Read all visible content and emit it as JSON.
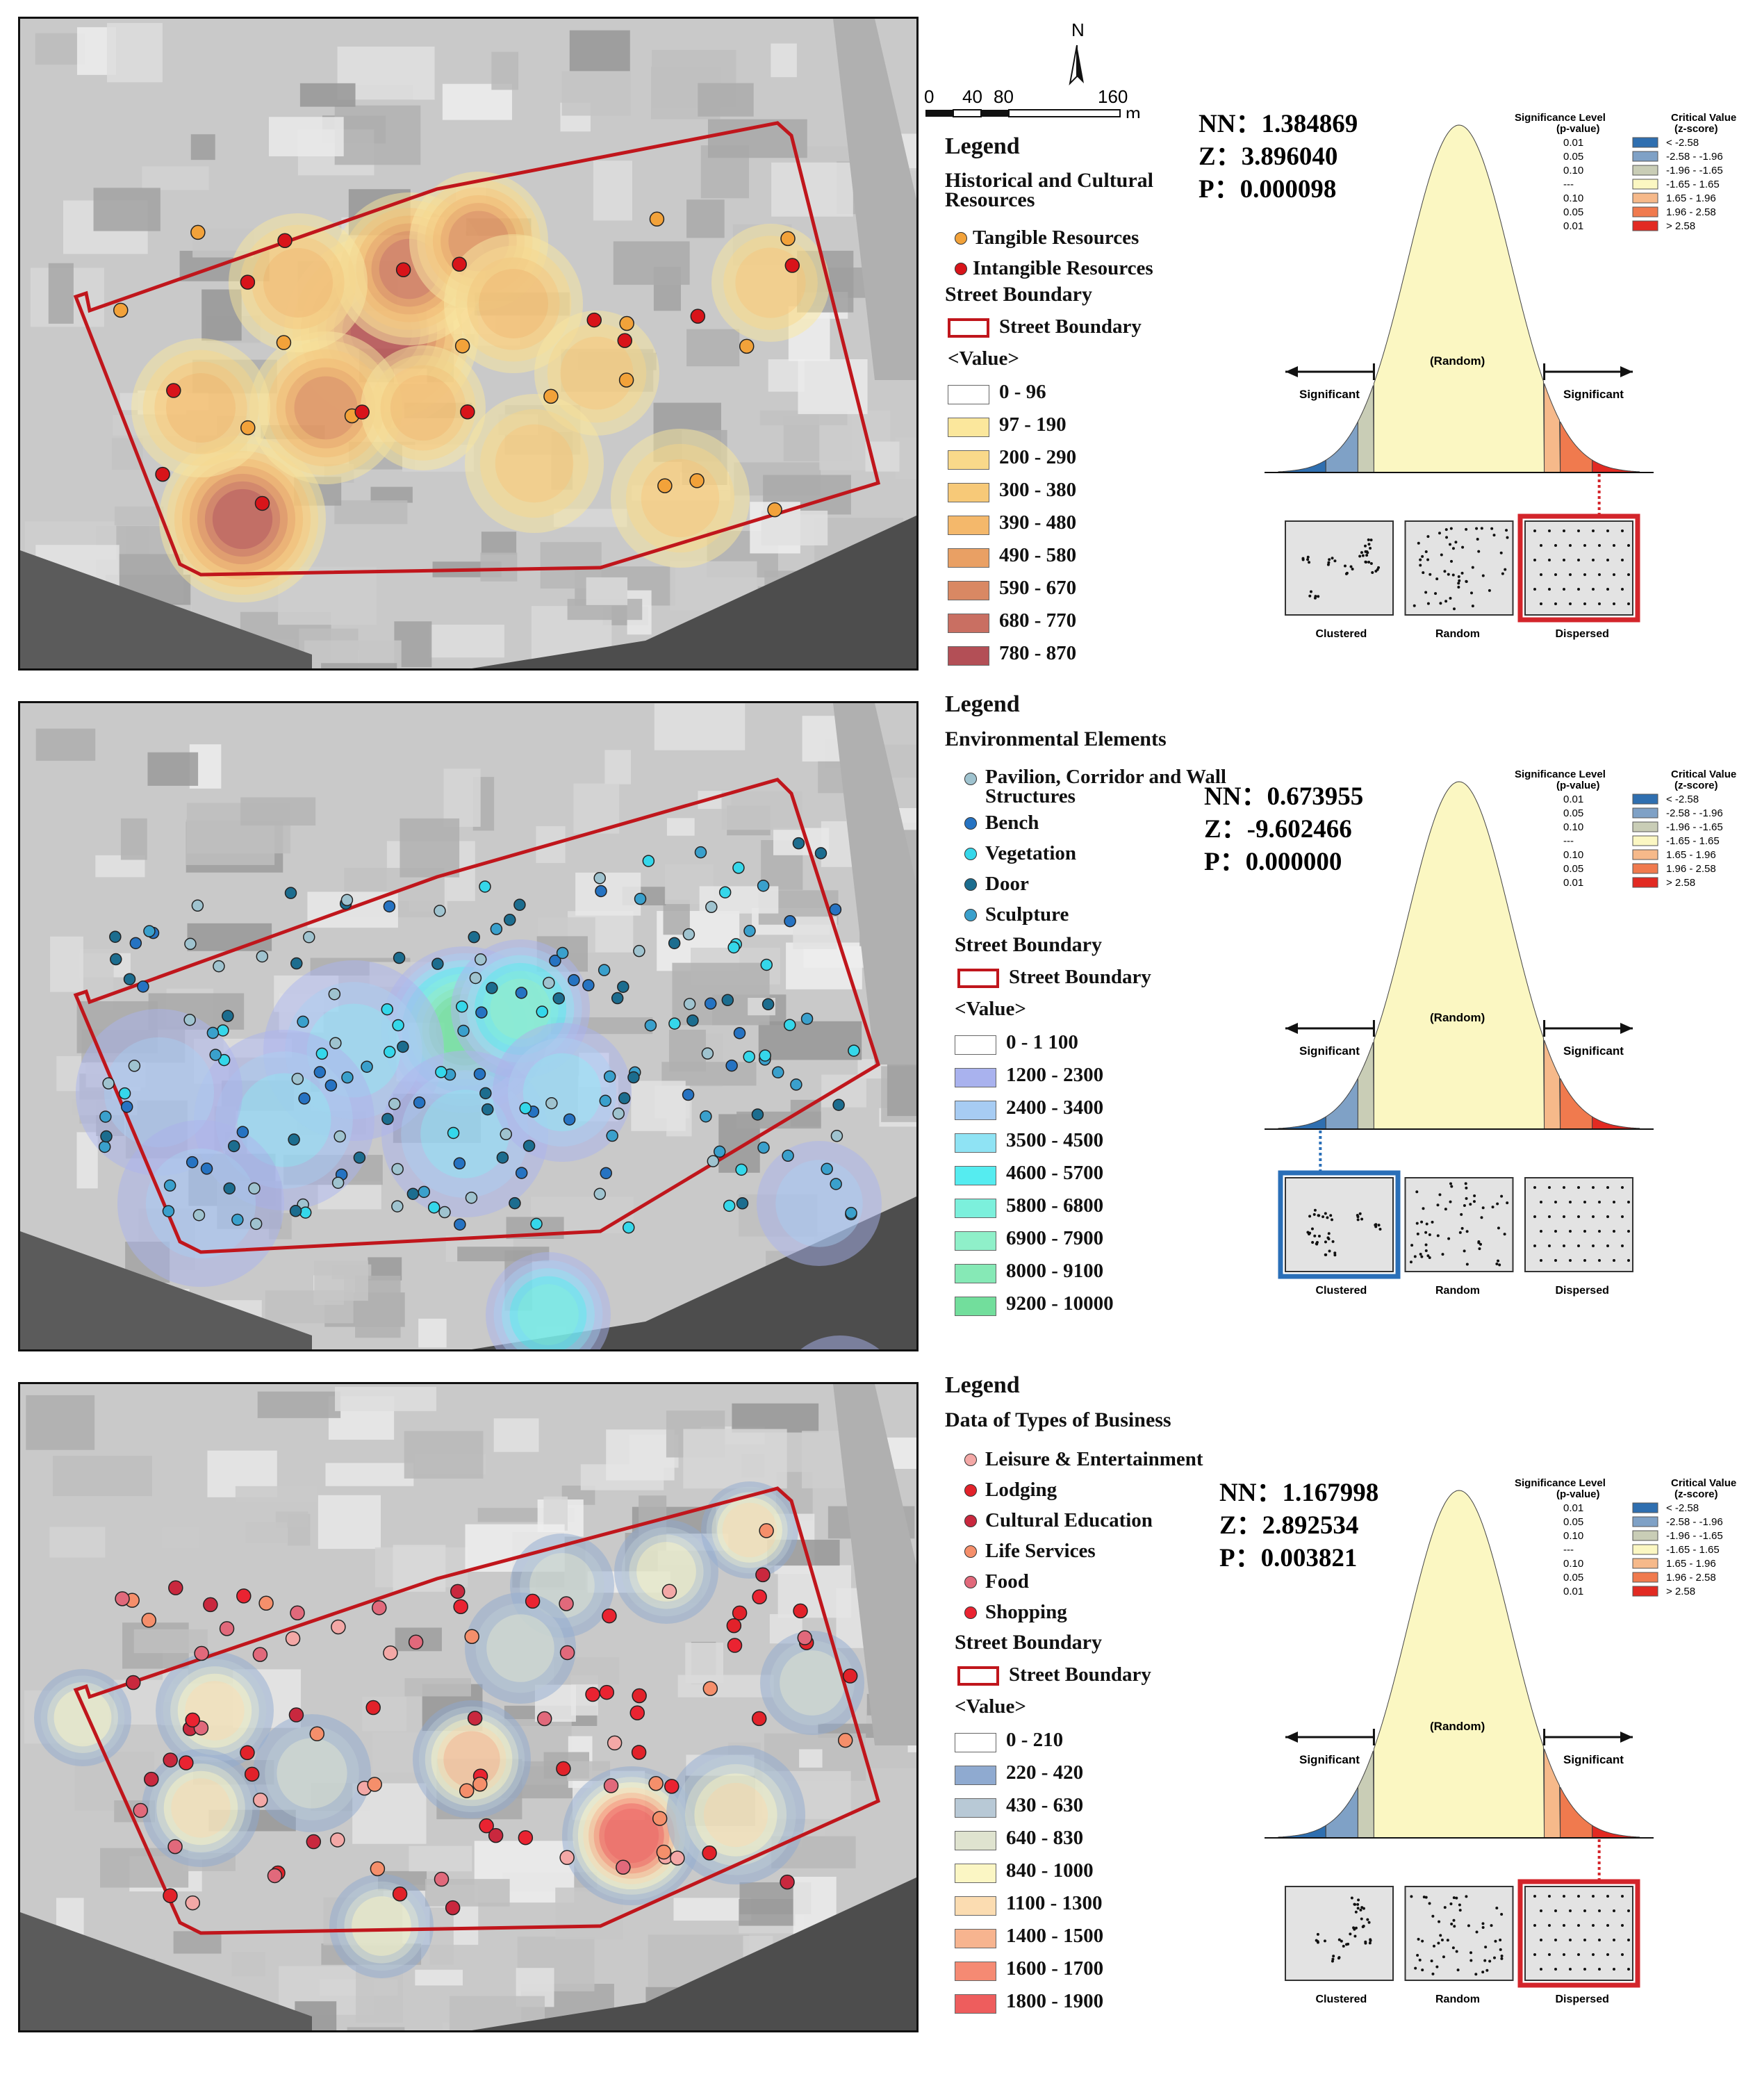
{
  "scale_bar": {
    "ticks": [
      "0",
      "40",
      "80",
      "160"
    ],
    "unit": "m",
    "north": "N"
  },
  "curve_labels": {
    "significant": "Significant",
    "random": "(Random)",
    "sig_level_title": "Significance Level",
    "sig_level_sub": "(p-value)",
    "crit_title": "Critical Value",
    "crit_sub": "(z-score)",
    "p_values": [
      "0.01",
      "0.05",
      "0.10",
      "---",
      "0.10",
      "0.05",
      "0.01"
    ],
    "z_ranges": [
      "< -2.58",
      "-2.58 - -1.96",
      "-1.96 - -1.65",
      "-1.65 - 1.65",
      "1.65 - 1.96",
      "1.96 - 2.58",
      "> 2.58"
    ],
    "z_colors": [
      "#2f6fb0",
      "#7fa1c6",
      "#c9cdb6",
      "#fbf7c2",
      "#f6b98a",
      "#f07a4e",
      "#e22a22"
    ],
    "patterns": [
      "Clustered",
      "Random",
      "Dispersed"
    ]
  },
  "panels": [
    {
      "legend_title": "Legend",
      "category_title": "Historical and Cultural Resources",
      "points": [
        {
          "label": "Tangible Resources",
          "color": "#f2a23a"
        },
        {
          "label": "Intangible Resources",
          "color": "#d8141a"
        }
      ],
      "boundary_heading": "Street Boundary",
      "boundary_label": "Street Boundary",
      "value_heading": "<Value>",
      "classes": [
        {
          "label": "0 - 96",
          "color": "#ffffff"
        },
        {
          "label": "97 - 190",
          "color": "#fbe79c"
        },
        {
          "label": "200 - 290",
          "color": "#f9d98a"
        },
        {
          "label": "300 - 380",
          "color": "#f7c978"
        },
        {
          "label": "390 - 480",
          "color": "#f4b86b"
        },
        {
          "label": "490 - 580",
          "color": "#e9a064"
        },
        {
          "label": "590 - 670",
          "color": "#d98863"
        },
        {
          "label": "680 - 770",
          "color": "#c96f62"
        },
        {
          "label": "780 - 870",
          "color": "#b34f56"
        }
      ],
      "stats": {
        "nn": "NN：1.384869",
        "z": "Z：3.896040",
        "p": "P：0.000098"
      },
      "pattern": "dispersed"
    },
    {
      "legend_title": "Legend",
      "category_title": "Environmental Elements",
      "points": [
        {
          "label": "Pavilion, Corridor and Wall Structures",
          "color": "#9fc3cf"
        },
        {
          "label": "Bench",
          "color": "#2673c2"
        },
        {
          "label": "Vegetation",
          "color": "#35d7ea"
        },
        {
          "label": "Door",
          "color": "#1c6d8f"
        },
        {
          "label": "Sculpture",
          "color": "#3aa0cc"
        }
      ],
      "boundary_heading": "Street Boundary",
      "boundary_label": "Street Boundary",
      "value_heading": "<Value>",
      "classes": [
        {
          "label": "0 - 1 100",
          "color": "#ffffff"
        },
        {
          "label": "1200 - 2300",
          "color": "#a9b2ee"
        },
        {
          "label": "2400 - 3400",
          "color": "#a7ccf3"
        },
        {
          "label": "3500 - 4500",
          "color": "#8fe3f4"
        },
        {
          "label": "4600 - 5700",
          "color": "#55ecf0"
        },
        {
          "label": "5800 - 6800",
          "color": "#7cf0dc"
        },
        {
          "label": "6900 - 7900",
          "color": "#8ff0c9"
        },
        {
          "label": "8000 - 9100",
          "color": "#86e9b6"
        },
        {
          "label": "9200 - 10000",
          "color": "#72de9c"
        }
      ],
      "stats": {
        "nn": "NN：0.673955",
        "z": "Z：-9.602466",
        "p": "P：0.000000"
      },
      "pattern": "clustered"
    },
    {
      "legend_title": "Legend",
      "category_title": "Data of Types of Business",
      "points": [
        {
          "label": "Leisure & Entertainment",
          "color": "#f3a8a6"
        },
        {
          "label": "Lodging",
          "color": "#e2222a"
        },
        {
          "label": "Cultural Education",
          "color": "#c9283e"
        },
        {
          "label": "Life Services",
          "color": "#f58f6b"
        },
        {
          "label": "Food",
          "color": "#e1697b"
        },
        {
          "label": "Shopping",
          "color": "#ea2331"
        }
      ],
      "boundary_heading": "Street Boundary",
      "boundary_label": "Street Boundary",
      "value_heading": "<Value>",
      "classes": [
        {
          "label": "0 - 210",
          "color": "#ffffff"
        },
        {
          "label": "220 - 420",
          "color": "#8faad0"
        },
        {
          "label": "430 - 630",
          "color": "#b8c9d6"
        },
        {
          "label": "640 - 830",
          "color": "#dfe3cf"
        },
        {
          "label": "840 - 1000",
          "color": "#fbf6c4"
        },
        {
          "label": "1100 - 1300",
          "color": "#fbdcb1"
        },
        {
          "label": "1400 - 1500",
          "color": "#f7b48f"
        },
        {
          "label": "1600 - 1700",
          "color": "#f58a73"
        },
        {
          "label": "1800 - 1900",
          "color": "#ee5d5d"
        }
      ],
      "stats": {
        "nn": "NN：1.167998",
        "z": "Z：2.892534",
        "p": "P：0.003821"
      },
      "pattern": "dispersed"
    }
  ]
}
